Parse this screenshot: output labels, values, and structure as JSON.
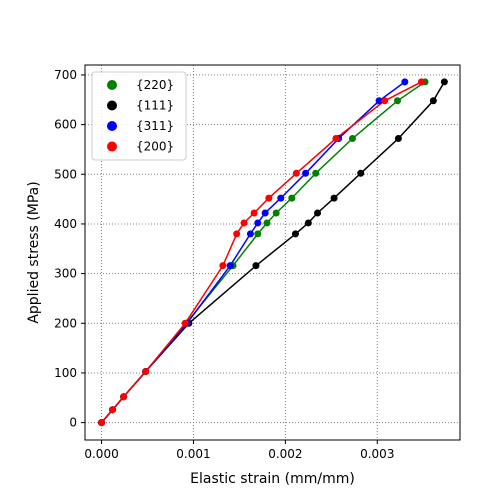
{
  "chart_data": {
    "type": "line",
    "xlabel": "Elastic strain (mm/mm)",
    "ylabel": "Applied stress (MPa)",
    "xlim": [
      -0.00018,
      0.0039
    ],
    "ylim": [
      -35,
      720
    ],
    "xticks": [
      0.0,
      0.001,
      0.002,
      0.003
    ],
    "xtick_labels": [
      "0.000",
      "0.001",
      "0.002",
      "0.003"
    ],
    "yticks": [
      0,
      100,
      200,
      300,
      400,
      500,
      600,
      700
    ],
    "ytick_labels": [
      "0",
      "100",
      "200",
      "300",
      "400",
      "500",
      "600",
      "700"
    ],
    "grid": true,
    "grid_style": "dotted",
    "legend_position": "top-left",
    "series": [
      {
        "name": "{220}",
        "color": "#008000",
        "x": [
          0.0,
          0.00012,
          0.00024,
          0.00048,
          0.00092,
          0.00143,
          0.0017,
          0.0018,
          0.0019,
          0.00207,
          0.00233,
          0.00273,
          0.00322,
          0.00352
        ],
        "y": [
          0,
          26,
          52,
          103,
          200,
          316,
          380,
          402,
          422,
          452,
          502,
          572,
          648,
          686
        ]
      },
      {
        "name": "{111}",
        "color": "#000000",
        "x": [
          0.0,
          0.00012,
          0.00024,
          0.00048,
          0.00095,
          0.00168,
          0.00211,
          0.00225,
          0.00235,
          0.00253,
          0.00282,
          0.00323,
          0.00361,
          0.00373
        ],
        "y": [
          0,
          26,
          52,
          103,
          200,
          316,
          380,
          402,
          422,
          452,
          502,
          572,
          648,
          686
        ]
      },
      {
        "name": "{311}",
        "color": "#0000ff",
        "x": [
          0.0,
          0.00012,
          0.00024,
          0.00048,
          0.00093,
          0.0014,
          0.00162,
          0.0017,
          0.00178,
          0.00195,
          0.00222,
          0.00258,
          0.00302,
          0.0033
        ],
        "y": [
          0,
          26,
          52,
          103,
          200,
          316,
          380,
          402,
          422,
          452,
          502,
          572,
          648,
          686
        ]
      },
      {
        "name": "{200}",
        "color": "#ff0000",
        "x": [
          0.0,
          0.00012,
          0.00024,
          0.00048,
          0.00091,
          0.00132,
          0.00147,
          0.00155,
          0.00166,
          0.00182,
          0.00212,
          0.00255,
          0.00308,
          0.00348
        ],
        "y": [
          0,
          26,
          52,
          103,
          200,
          316,
          380,
          402,
          422,
          452,
          502,
          572,
          648,
          686
        ]
      }
    ]
  }
}
